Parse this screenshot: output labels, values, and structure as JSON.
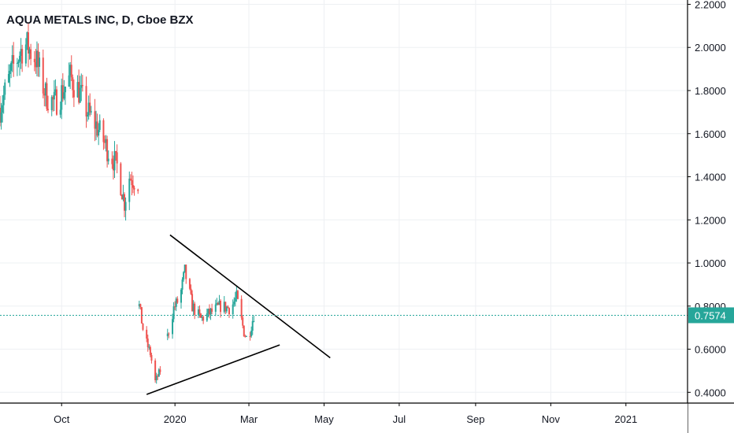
{
  "header": {
    "title": "AQUA METALS INC, D, Cboe BZX"
  },
  "colors": {
    "up": "#26a69a",
    "down": "#ef5350",
    "grid": "#eef0f3",
    "axis_text": "#131722",
    "price_line": "#26a69a",
    "price_badge": "#26a69a",
    "trend_line": "#000000"
  },
  "chart_data": {
    "type": "candlestick",
    "title": "AQUA METALS INC, D, Cboe BZX",
    "xlabel": "",
    "ylabel": "",
    "ylim": [
      0.35,
      2.22
    ],
    "xlim": [
      "2019-08-12",
      "2021-02-20"
    ],
    "grid": true,
    "y_ticks": [
      "2.2000",
      "2.0000",
      "1.8000",
      "1.6000",
      "1.4000",
      "1.2000",
      "1.0000",
      "0.8000",
      "0.6000",
      "0.4000"
    ],
    "x_ticks": [
      {
        "label": "Oct",
        "date": "2019-10-01"
      },
      {
        "label": "2020",
        "date": "2020-01-01"
      },
      {
        "label": "Mar",
        "date": "2020-03-01"
      },
      {
        "label": "May",
        "date": "2020-05-01"
      },
      {
        "label": "Jul",
        "date": "2020-07-01"
      },
      {
        "label": "Sep",
        "date": "2020-09-01"
      },
      {
        "label": "Nov",
        "date": "2020-11-01"
      },
      {
        "label": "2021",
        "date": "2021-01-01"
      }
    ],
    "last_price": {
      "value": 0.7574,
      "label": "0.7574"
    },
    "trend_lines": [
      {
        "name": "upper-resistance",
        "from": [
          "2019-12-28",
          1.13
        ],
        "to": [
          "2020-05-06",
          0.56
        ]
      },
      {
        "name": "lower-support",
        "from": [
          "2019-12-09",
          0.39
        ],
        "to": [
          "2020-03-26",
          0.62
        ]
      }
    ],
    "segments": [
      {
        "start": "2019-08-12",
        "end": "2019-12-02",
        "anchors": [
          [
            "2019-08-12",
            1.72
          ],
          [
            "2019-08-22",
            1.9
          ],
          [
            "2019-09-01",
            2.02
          ],
          [
            "2019-09-10",
            1.95
          ],
          [
            "2019-09-18",
            1.78
          ],
          [
            "2019-09-25",
            1.74
          ],
          [
            "2019-10-01",
            1.79
          ],
          [
            "2019-10-08",
            1.86
          ],
          [
            "2019-10-15",
            1.8
          ],
          [
            "2019-10-22",
            1.7
          ],
          [
            "2019-10-30",
            1.63
          ],
          [
            "2019-11-07",
            1.53
          ],
          [
            "2019-11-15",
            1.45
          ],
          [
            "2019-11-21",
            1.28
          ],
          [
            "2019-11-25",
            1.4
          ],
          [
            "2019-12-02",
            1.37
          ]
        ]
      },
      {
        "start": "2019-12-03",
        "end": "2019-12-20",
        "anchors": [
          [
            "2019-12-03",
            0.8
          ],
          [
            "2019-12-07",
            0.66
          ],
          [
            "2019-12-12",
            0.58
          ],
          [
            "2019-12-16",
            0.45
          ],
          [
            "2019-12-20",
            0.5
          ]
        ]
      },
      {
        "start": "2019-12-26",
        "end": "2020-03-05",
        "anchors": [
          [
            "2019-12-26",
            0.66
          ],
          [
            "2019-12-31",
            0.79
          ],
          [
            "2020-01-05",
            0.84
          ],
          [
            "2020-01-09",
            0.96
          ],
          [
            "2020-01-15",
            0.8
          ],
          [
            "2020-01-22",
            0.74
          ],
          [
            "2020-01-30",
            0.77
          ],
          [
            "2020-02-07",
            0.8
          ],
          [
            "2020-02-15",
            0.79
          ],
          [
            "2020-02-20",
            0.84
          ],
          [
            "2020-02-26",
            0.68
          ],
          [
            "2020-02-29",
            0.64
          ],
          [
            "2020-03-05",
            0.76
          ]
        ]
      }
    ]
  }
}
